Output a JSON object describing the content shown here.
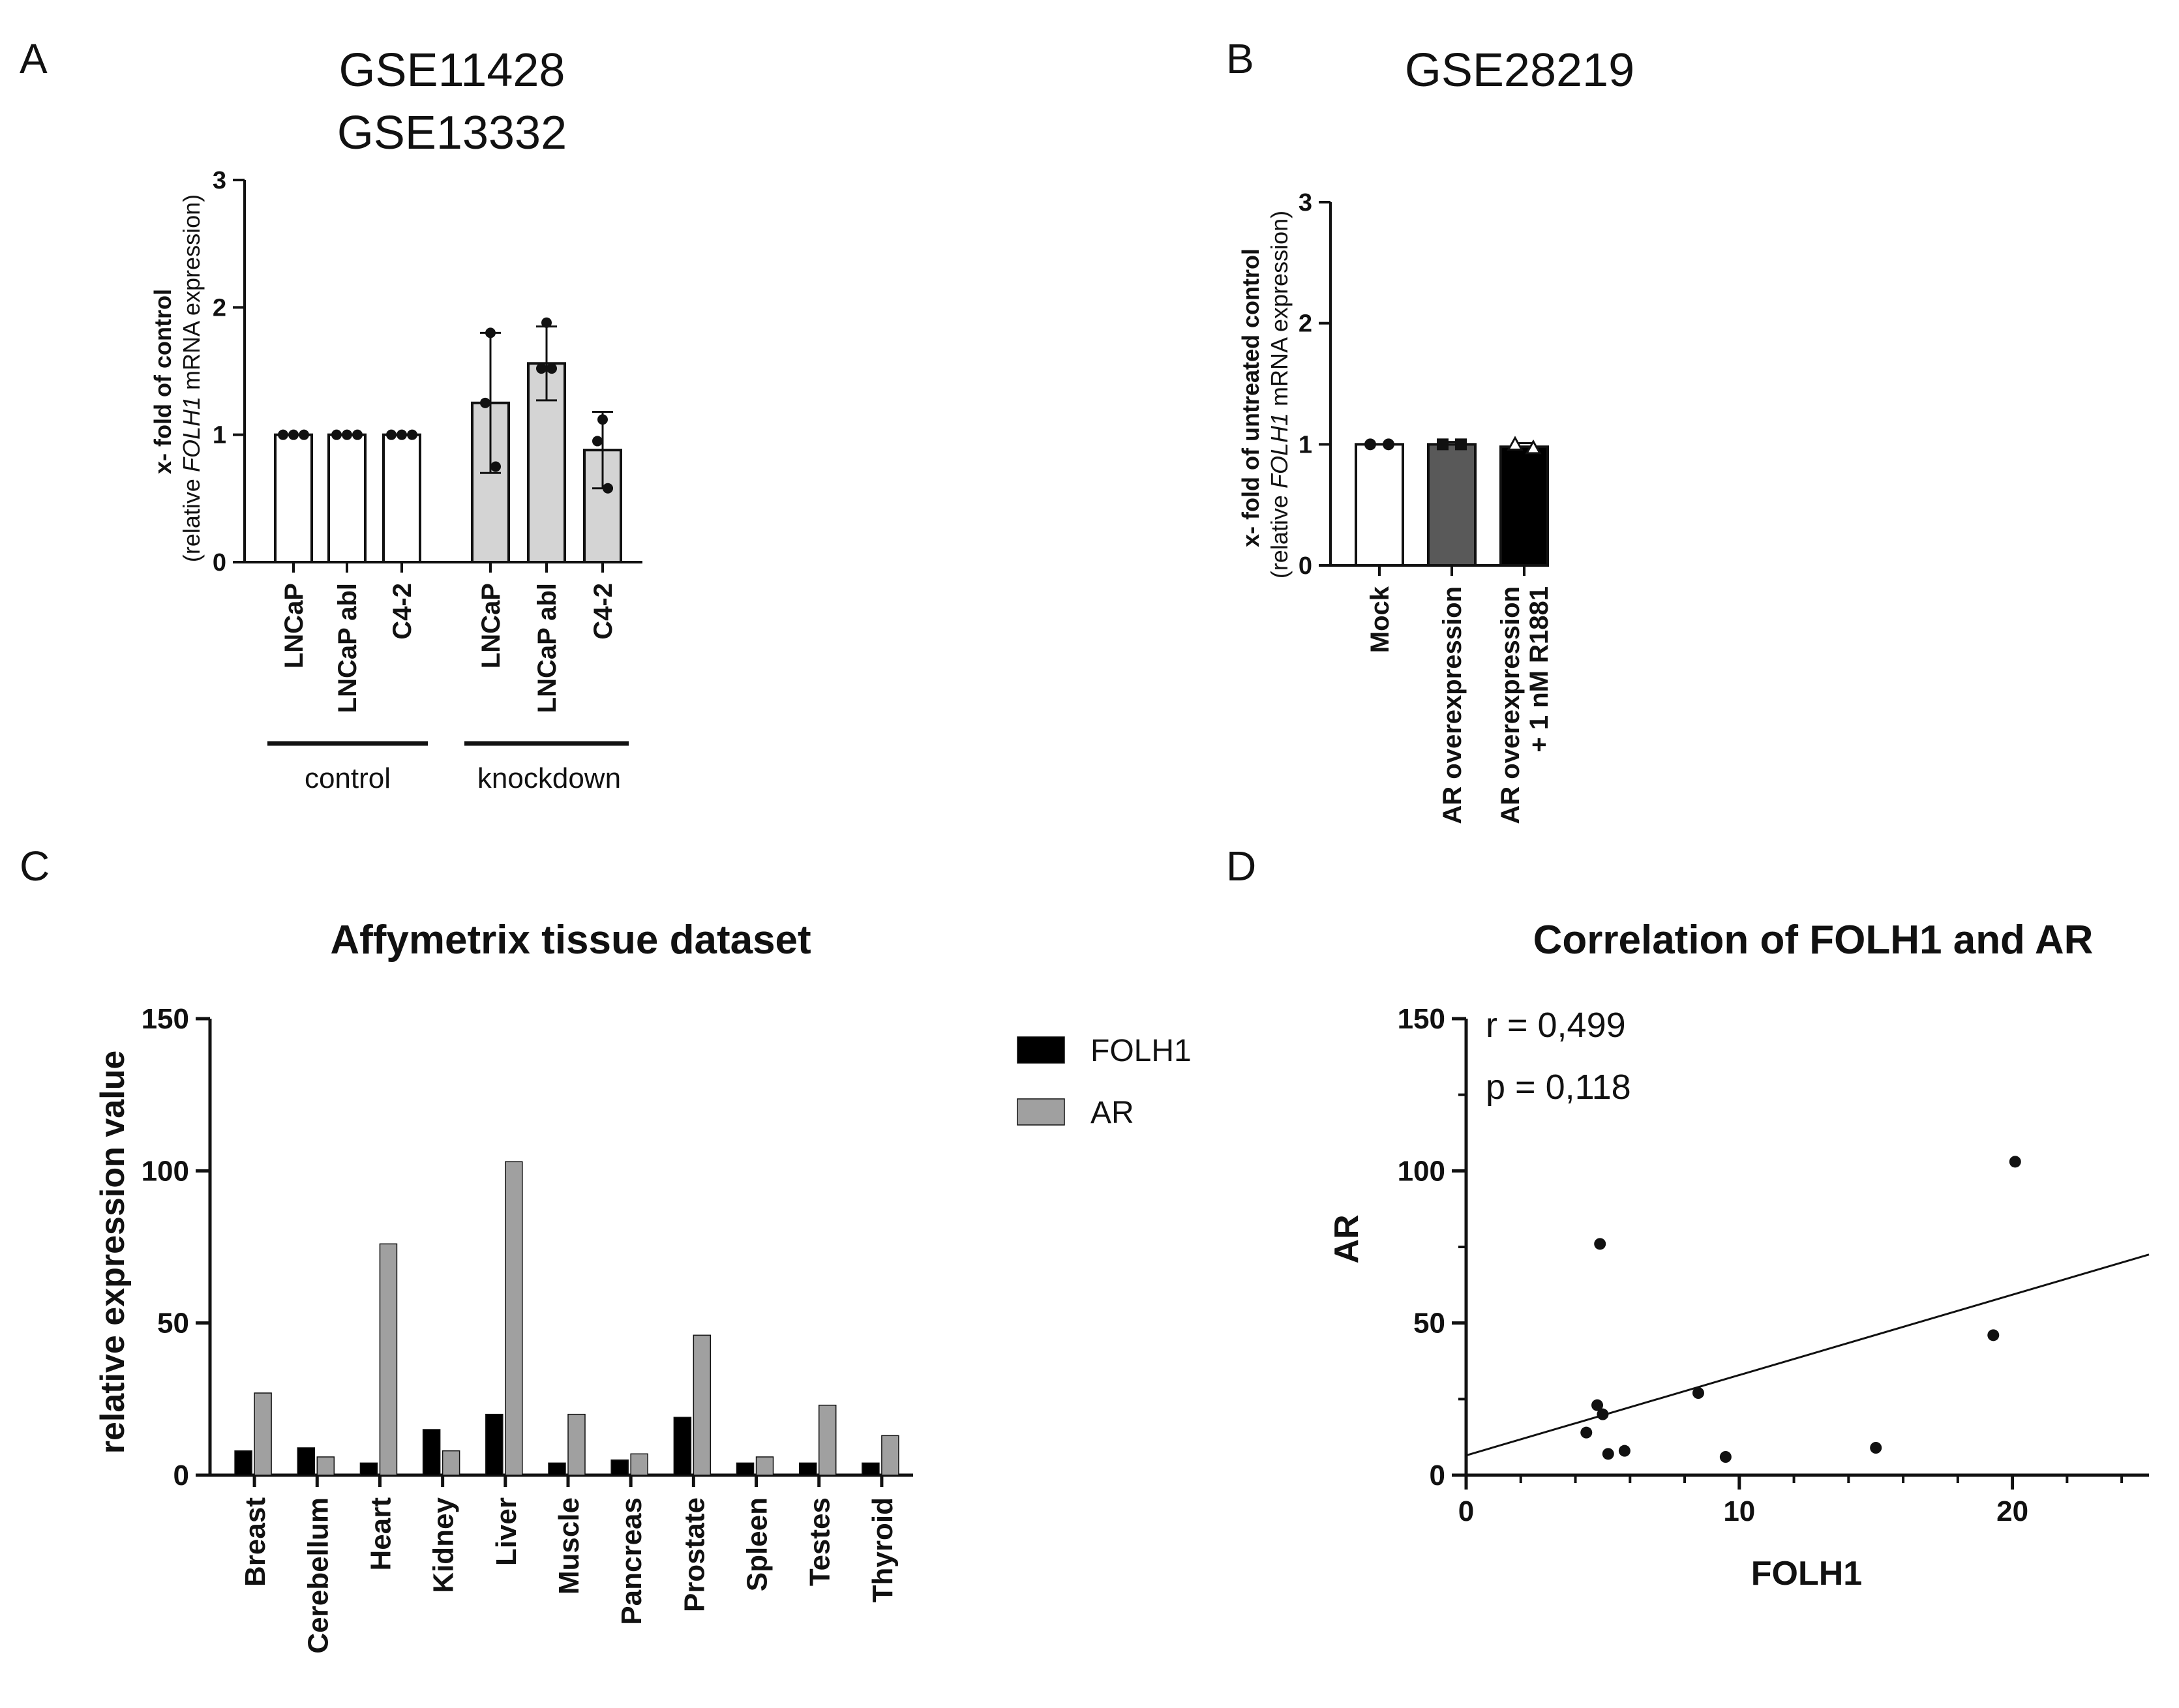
{
  "panels": {
    "A": {
      "label": "A",
      "title_lines": [
        "GSE11428",
        "GSE13332"
      ]
    },
    "B": {
      "label": "B",
      "title": "GSE28219"
    },
    "C": {
      "label": "C"
    },
    "D": {
      "label": "D"
    }
  },
  "chart_data": [
    {
      "panel": "A",
      "type": "bar",
      "title": "GSE11428\nGSE13332",
      "ylabel": "x- fold of control (relative FOLH1 mRNA expression)",
      "ylabel_parts": {
        "line1": "x- fold of control",
        "line2_pre": "(relative ",
        "line2_gene": "FOLH1",
        "line2_post": " mRNA expression)"
      },
      "ylim": [
        0,
        3
      ],
      "yticks": [
        "0",
        "1",
        "2",
        "3"
      ],
      "categories": [
        "LNCaP",
        "LNCaP abl",
        "C4-2",
        "LNCaP",
        "LNCaP abl",
        "C4-2"
      ],
      "groups": [
        {
          "name": "control",
          "members": [
            0,
            1,
            2
          ]
        },
        {
          "name": "knockdown",
          "members": [
            3,
            4,
            5
          ]
        }
      ],
      "values": [
        1.0,
        1.0,
        1.0,
        1.25,
        1.56,
        0.88
      ],
      "errors": [
        0,
        0,
        0,
        0.55,
        0.29,
        0.3
      ],
      "points": [
        [
          1,
          1,
          1
        ],
        [
          1,
          1,
          1
        ],
        [
          1,
          1,
          1
        ],
        [
          1.8,
          1.25,
          0.75
        ],
        [
          1.88,
          1.52,
          1.52
        ],
        [
          1.12,
          0.95,
          0.58
        ]
      ],
      "bar_colors": [
        "#ffffff",
        "#ffffff",
        "#ffffff",
        "#d4d4d4",
        "#d4d4d4",
        "#d4d4d4"
      ]
    },
    {
      "panel": "B",
      "type": "bar",
      "title": "GSE28219",
      "ylabel": "x- fold of untreated control (relative FOLH1 mRNA expression)",
      "ylabel_parts": {
        "line1": "x- fold of untreated control",
        "line2_pre": "(relative ",
        "line2_gene": "FOLH1",
        "line2_post": " mRNA expression)"
      },
      "ylim": [
        0,
        3
      ],
      "yticks": [
        "0",
        "1",
        "2",
        "3"
      ],
      "categories": [
        {
          "lines": [
            "Mock"
          ]
        },
        {
          "lines": [
            "AR overexpression"
          ]
        },
        {
          "lines": [
            "AR overexpression",
            "+ 1 nM R1881"
          ]
        }
      ],
      "values": [
        1.0,
        1.0,
        0.98
      ],
      "errors": [
        0,
        0.02,
        0.03
      ],
      "points": [
        [
          1,
          1
        ],
        [
          1,
          1
        ],
        [
          1,
          0.97
        ]
      ],
      "point_markers": [
        "circle",
        "square",
        "triangle"
      ],
      "bar_colors": [
        "#ffffff",
        "#595959",
        "#000000"
      ]
    },
    {
      "panel": "C",
      "type": "bar",
      "title": "Affymetrix tissue dataset",
      "xlabel": "",
      "ylabel": "relative expression value",
      "ylim": [
        0,
        150
      ],
      "yticks": [
        "0",
        "50",
        "100",
        "150"
      ],
      "categories": [
        "Breast",
        "Cerebellum",
        "Heart",
        "Kidney",
        "Liver",
        "Muscle",
        "Pancreas",
        "Prostate",
        "Spleen",
        "Testes",
        "Thyroid"
      ],
      "series": [
        {
          "name": "FOLH1",
          "color": "#000000",
          "values": [
            8,
            9,
            4,
            15,
            20,
            4,
            5,
            19,
            4,
            4,
            4
          ]
        },
        {
          "name": "AR",
          "color": "#a0a0a0",
          "values": [
            27,
            6,
            76,
            8,
            103,
            20,
            7,
            46,
            6,
            23,
            13
          ]
        }
      ],
      "legend": "right"
    },
    {
      "panel": "D",
      "type": "scatter",
      "title": "Correlation of FOLH1 and AR",
      "xlabel": "FOLH1",
      "ylabel": "AR",
      "xlim": [
        0,
        25
      ],
      "ylim": [
        0,
        150
      ],
      "xticks": [
        "0",
        "10",
        "20"
      ],
      "yticks": [
        "0",
        "50",
        "100",
        "150"
      ],
      "points": [
        [
          20.1,
          103
        ],
        [
          4.9,
          76
        ],
        [
          19.3,
          46
        ],
        [
          8.5,
          27
        ],
        [
          4.8,
          23
        ],
        [
          5.0,
          20
        ],
        [
          4.4,
          14
        ],
        [
          15.0,
          9
        ],
        [
          5.8,
          8
        ],
        [
          5.2,
          7
        ],
        [
          9.5,
          6
        ]
      ],
      "trendline": {
        "x": [
          0,
          25
        ],
        "y": [
          6.5,
          72.5
        ]
      },
      "annotations": [
        "r = 0,499",
        "p = 0,118"
      ]
    }
  ]
}
